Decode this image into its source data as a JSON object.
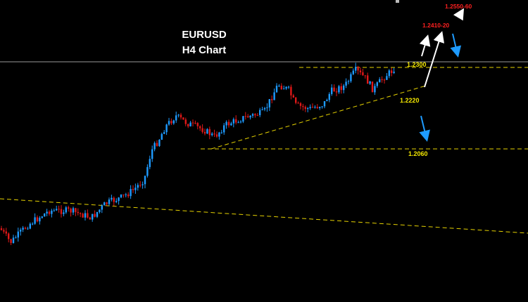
{
  "chart_data": {
    "type": "candlestick",
    "title": "EURUSD",
    "subtitle": "H4 Chart",
    "colors": {
      "background": "#000000",
      "bull": "#1e9bff",
      "bear": "#e01818",
      "level_line": "#e6d200",
      "level_label": "#f2e600",
      "target_label": "#ff2020",
      "arrow_up": "#ffffff",
      "arrow_down": "#1e9bff",
      "price_line": "#9a9a9a"
    },
    "price_line": 1.231,
    "levels": [
      {
        "label": "1.2300",
        "value": 1.23,
        "style": "dashed"
      },
      {
        "label": "1.2060",
        "value": 1.206,
        "style": "dashed"
      }
    ],
    "trendlines": [
      {
        "label": "1.2220",
        "role": "rising support"
      },
      {
        "label": "",
        "role": "falling long-term line"
      }
    ],
    "targets": [
      "1.2410-20",
      "1.2550-60"
    ],
    "arrows": [
      {
        "color": "white",
        "direction": "up",
        "to": "1.2410-20"
      },
      {
        "color": "white",
        "direction": "up",
        "to": "1.2410-20"
      },
      {
        "color": "white",
        "direction": "up",
        "to": "1.2550-60"
      },
      {
        "color": "blue",
        "direction": "down",
        "to": "1.2300"
      },
      {
        "color": "blue",
        "direction": "down",
        "to": "1.2060"
      }
    ]
  }
}
